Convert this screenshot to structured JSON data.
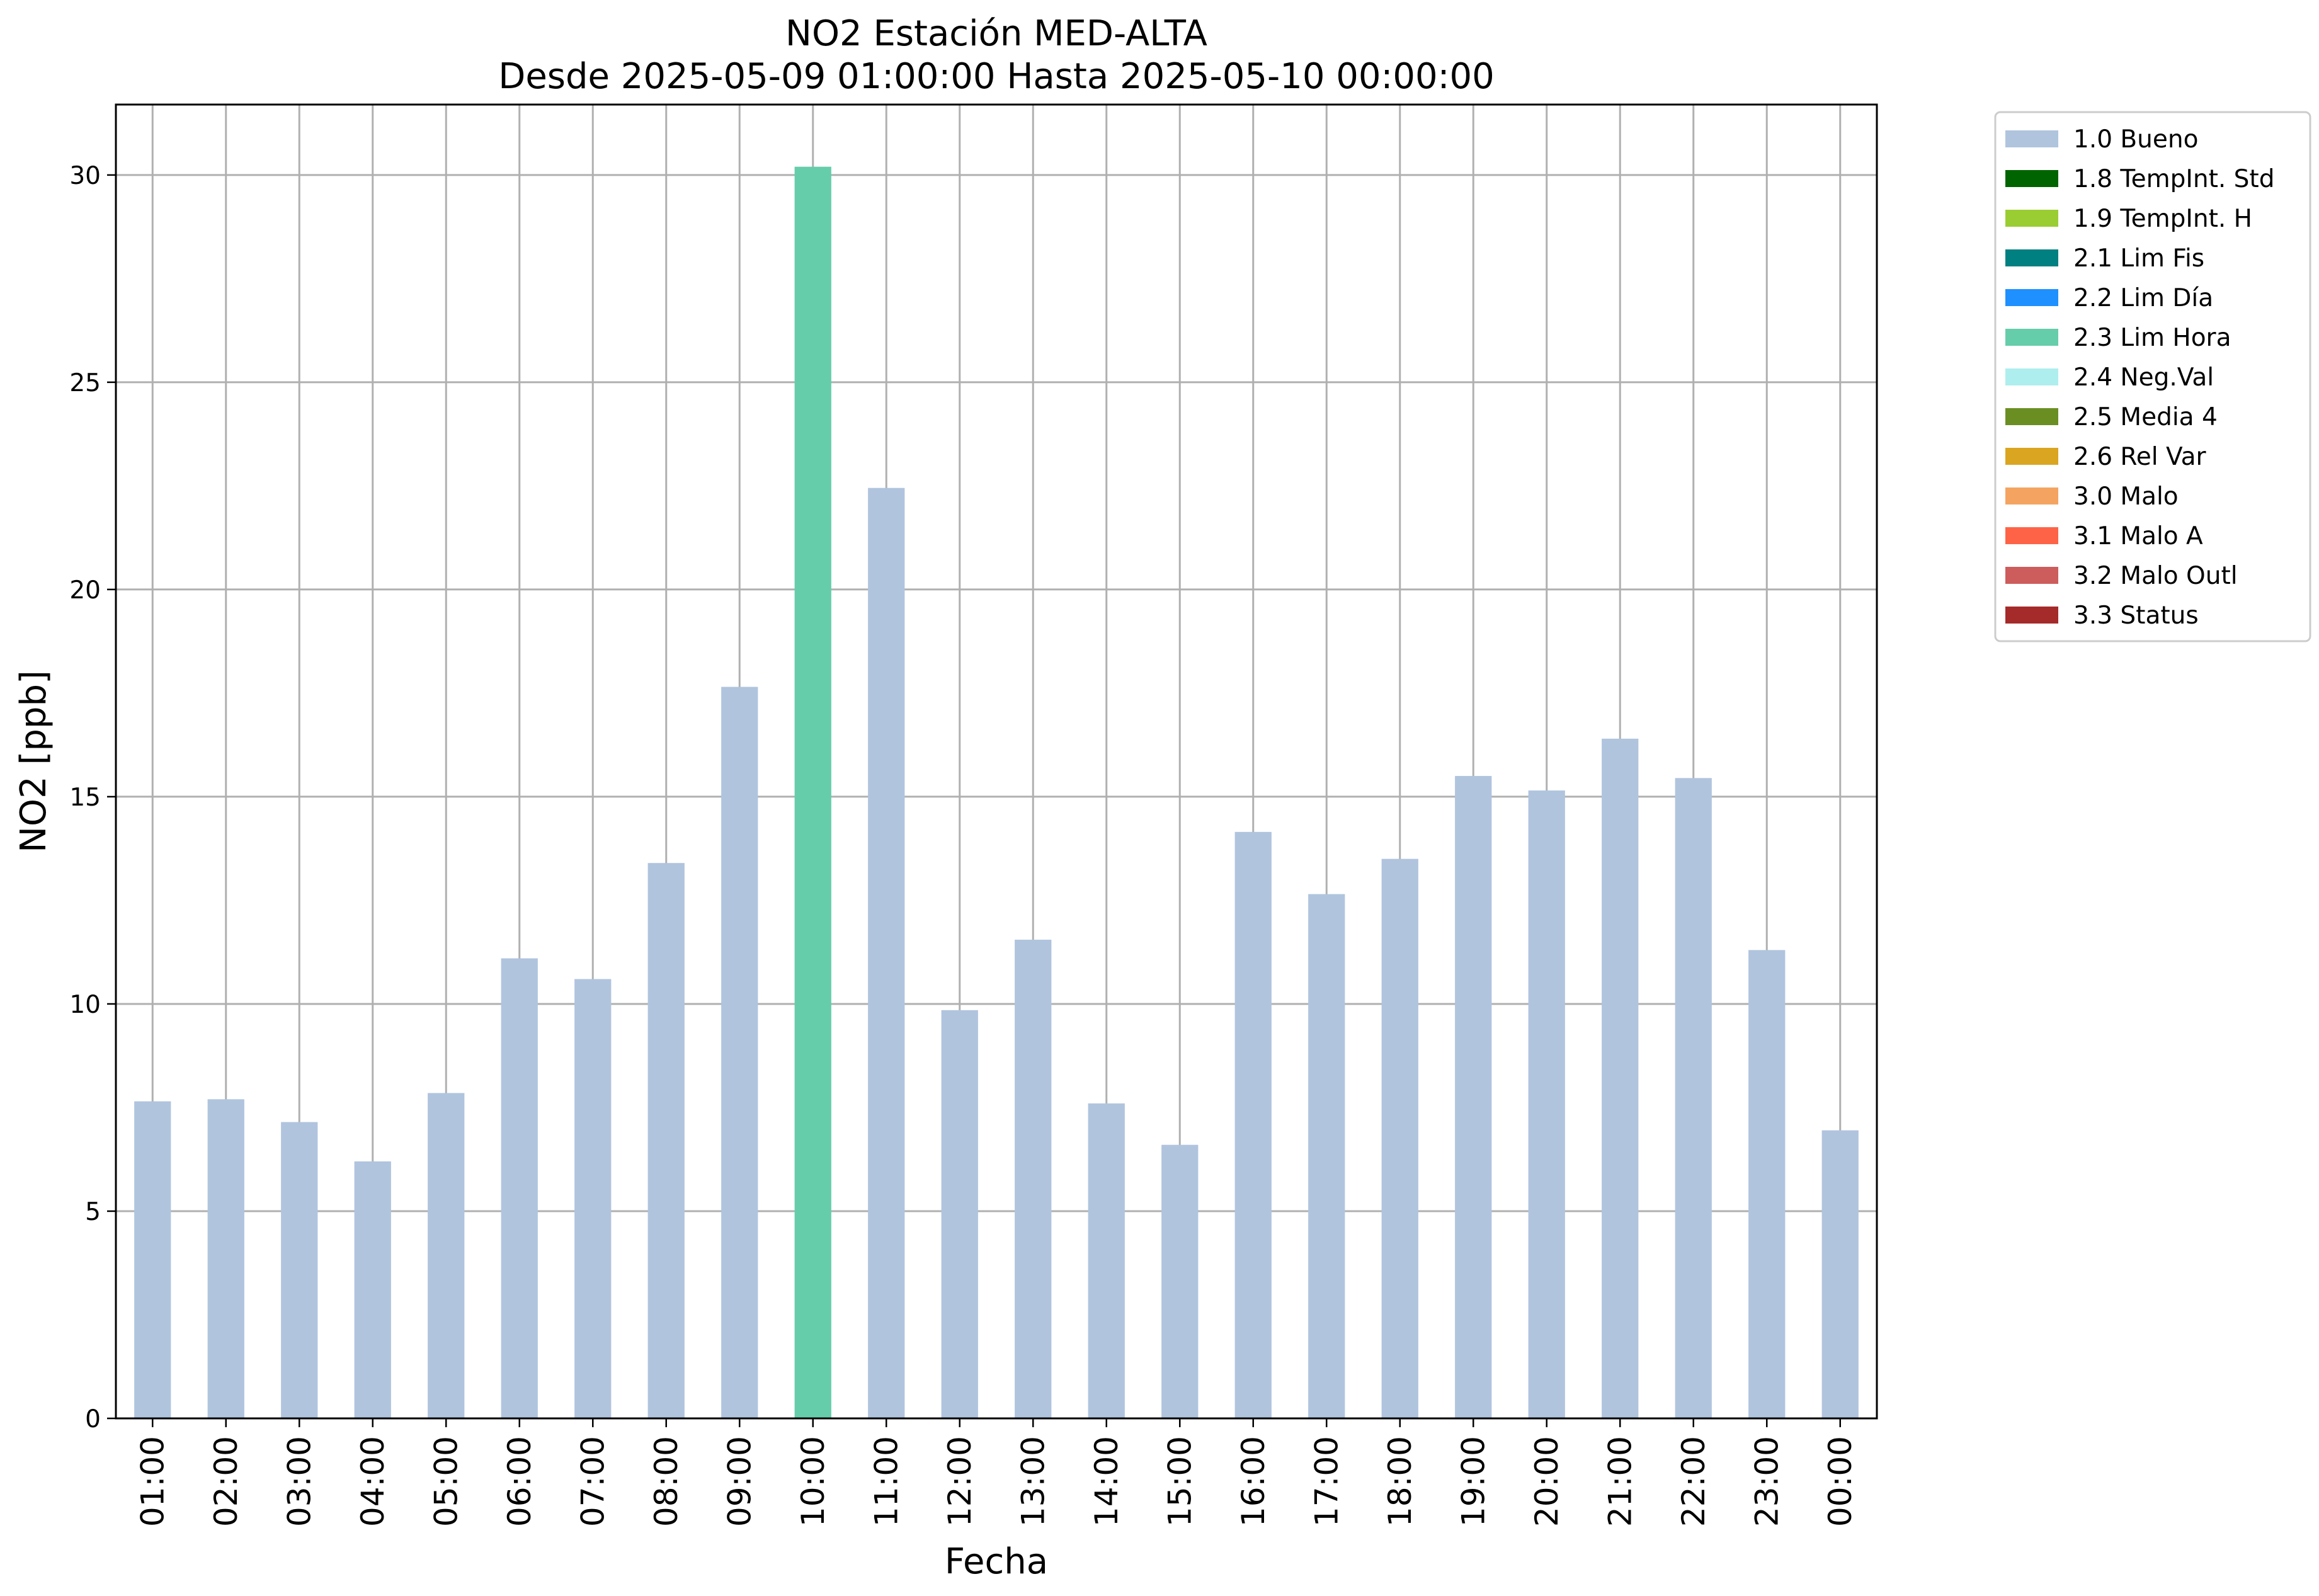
{
  "chart_data": {
    "type": "bar",
    "title": "NO2 Estación MED-ALTA",
    "subtitle": "Desde 2025-05-09 01:00:00 Hasta 2025-05-10 00:00:00",
    "xlabel": "Fecha",
    "ylabel": "NO2 [ppb]",
    "ylim": [
      0,
      31.7
    ],
    "yticks": [
      0,
      5,
      10,
      15,
      20,
      25,
      30
    ],
    "grid": true,
    "legend_position": "outside-right-top",
    "categories": [
      "01:00",
      "02:00",
      "03:00",
      "04:00",
      "05:00",
      "06:00",
      "07:00",
      "08:00",
      "09:00",
      "10:00",
      "11:00",
      "12:00",
      "13:00",
      "14:00",
      "15:00",
      "16:00",
      "17:00",
      "18:00",
      "19:00",
      "20:00",
      "21:00",
      "22:00",
      "23:00",
      "00:00"
    ],
    "values": [
      7.65,
      7.7,
      7.15,
      6.2,
      7.85,
      11.1,
      10.6,
      13.4,
      17.65,
      30.2,
      22.45,
      9.85,
      11.55,
      7.6,
      6.6,
      14.15,
      12.65,
      13.5,
      15.5,
      15.15,
      16.4,
      15.45,
      11.3,
      6.95
    ],
    "flags": [
      "1.0 Bueno",
      "1.0 Bueno",
      "1.0 Bueno",
      "1.0 Bueno",
      "1.0 Bueno",
      "1.0 Bueno",
      "1.0 Bueno",
      "1.0 Bueno",
      "1.0 Bueno",
      "2.3 Lim Hora",
      "1.0 Bueno",
      "1.0 Bueno",
      "1.0 Bueno",
      "1.0 Bueno",
      "1.0 Bueno",
      "1.0 Bueno",
      "1.0 Bueno",
      "1.0 Bueno",
      "1.0 Bueno",
      "1.0 Bueno",
      "1.0 Bueno",
      "1.0 Bueno",
      "1.0 Bueno",
      "1.0 Bueno"
    ],
    "legend": [
      {
        "label": "1.0 Bueno",
        "color": "#b0c4de"
      },
      {
        "label": "1.8 TempInt. Std",
        "color": "#006400"
      },
      {
        "label": "1.9 TempInt. H",
        "color": "#9acd32"
      },
      {
        "label": "2.1 Lim Fis",
        "color": "#008080"
      },
      {
        "label": "2.2 Lim Día",
        "color": "#1e90ff"
      },
      {
        "label": "2.3 Lim Hora",
        "color": "#66cdaa"
      },
      {
        "label": "2.4 Neg.Val",
        "color": "#afeeee"
      },
      {
        "label": "2.5 Media 4",
        "color": "#6b8e23"
      },
      {
        "label": "2.6 Rel Var",
        "color": "#daa520"
      },
      {
        "label": "3.0 Malo",
        "color": "#f4a460"
      },
      {
        "label": "3.1 Malo A",
        "color": "#ff6347"
      },
      {
        "label": "3.2 Malo Outl",
        "color": "#cd5c5c"
      },
      {
        "label": "3.3 Status",
        "color": "#a52a2a"
      }
    ]
  }
}
